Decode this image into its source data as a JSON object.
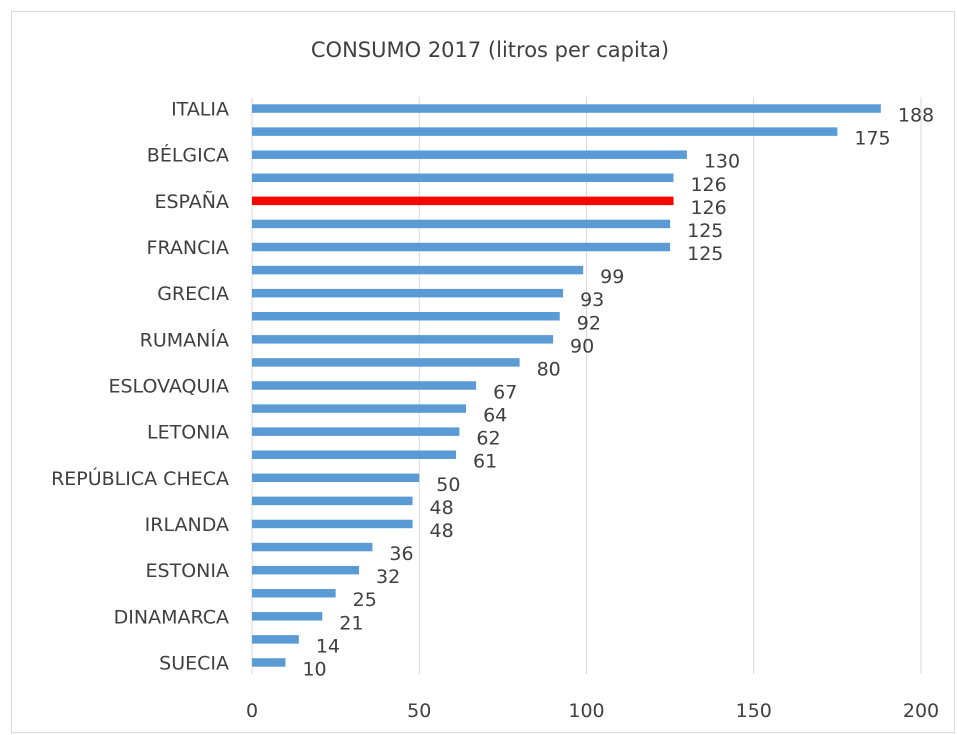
{
  "chart_data": {
    "type": "bar",
    "orientation": "horizontal",
    "title": "CONSUMO 2017 (litros per capita)",
    "xlabel": "",
    "ylabel": "",
    "xlim": [
      0,
      200
    ],
    "x_ticks": [
      "0",
      "50",
      "100",
      "150",
      "200"
    ],
    "grid": "vertical gridlines",
    "legend": "none",
    "categories": [
      "ITALIA",
      "",
      "BÉLGICA",
      "",
      "ESPAÑA",
      "",
      "FRANCIA",
      "",
      "GRECIA",
      "",
      "RUMANÍA",
      "",
      "ESLOVAQUIA",
      "",
      "LETONIA",
      "",
      "REPÚBLICA CHECA",
      "",
      "IRLANDA",
      "",
      "ESTONIA",
      "",
      "DINAMARCA",
      "",
      "SUECIA"
    ],
    "values": [
      188,
      175,
      130,
      126,
      126,
      125,
      125,
      99,
      93,
      92,
      90,
      80,
      67,
      64,
      62,
      61,
      50,
      48,
      48,
      36,
      32,
      25,
      21,
      14,
      10
    ],
    "highlight_index": 4,
    "colors": {
      "bar": "#5b9bd5",
      "highlight": "#ff0000",
      "grid": "#d9d9d9",
      "text": "#404040"
    }
  }
}
